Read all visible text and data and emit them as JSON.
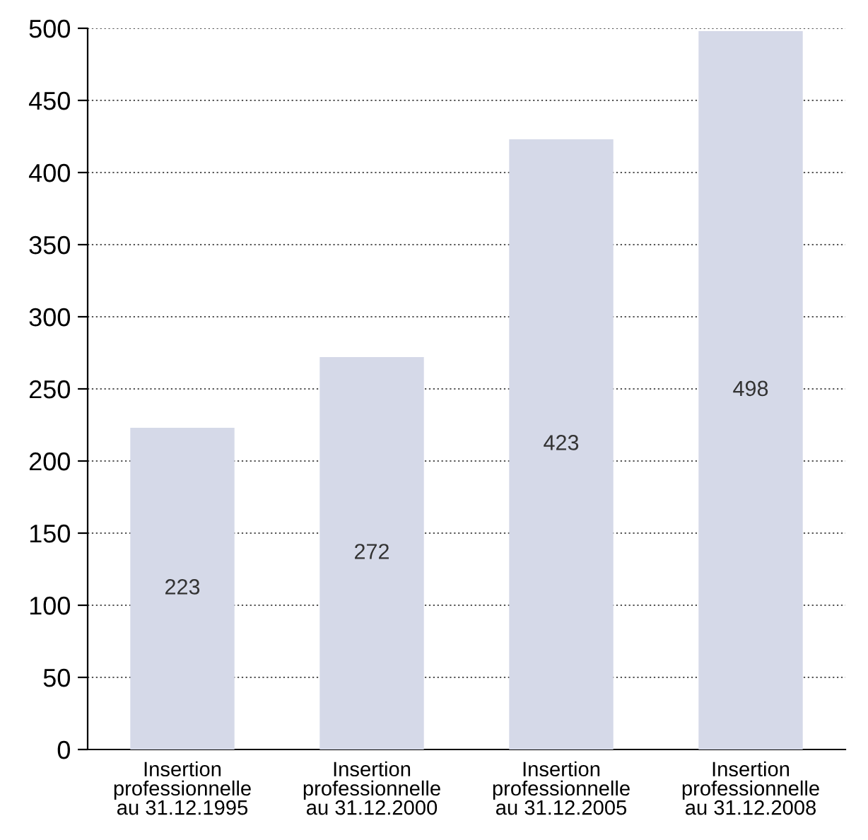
{
  "chart_data": {
    "type": "bar",
    "categories": [
      "Insertion\nprofessionnelle\nau 31.12.1995",
      "Insertion\nprofessionnelle\nau 31.12.2000",
      "Insertion\nprofessionnelle\nau 31.12.2005",
      "Insertion\nprofessionnelle\nau 31.12.2008"
    ],
    "values": [
      223,
      272,
      423,
      498
    ],
    "color": "#d5d9e8",
    "ylim": [
      0,
      500
    ],
    "yticks": [
      0,
      50,
      100,
      150,
      200,
      250,
      300,
      350,
      400,
      450,
      500
    ],
    "grid": "y",
    "data_labels": true
  }
}
